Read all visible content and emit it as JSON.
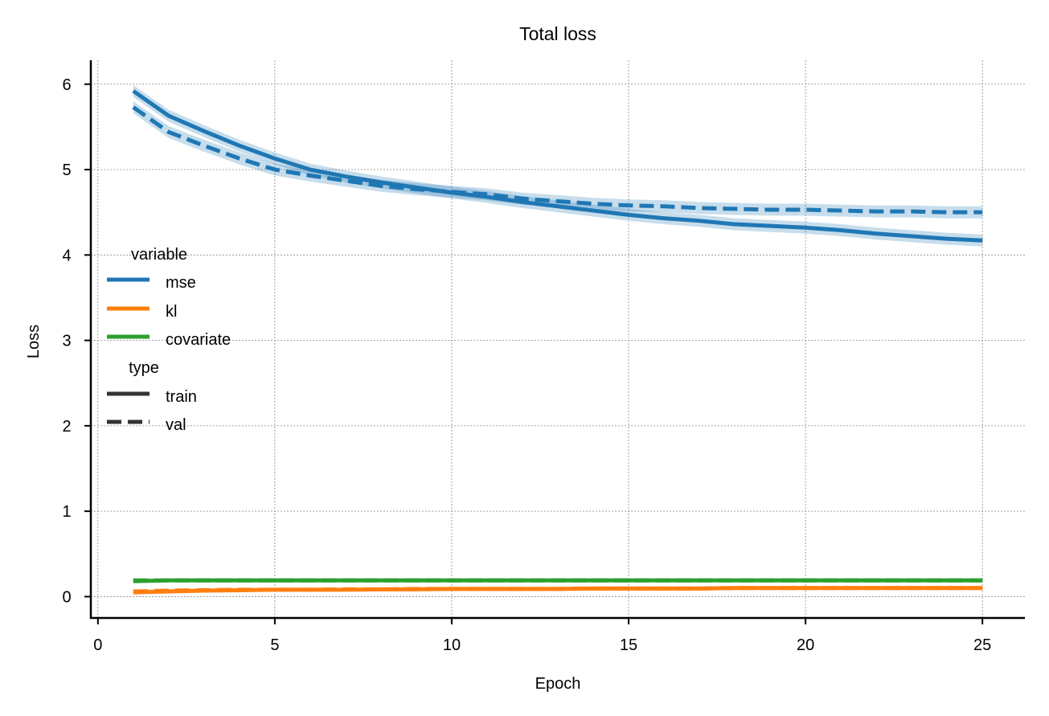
{
  "chart_data": {
    "type": "line",
    "title": "Total loss",
    "xlabel": "Epoch",
    "ylabel": "Loss",
    "xlim": [
      -0.2,
      26.2
    ],
    "ylim": [
      -0.25,
      6.28
    ],
    "xticks": [
      0,
      5,
      10,
      15,
      20,
      25
    ],
    "yticks": [
      0,
      1,
      2,
      3,
      4,
      5,
      6
    ],
    "grid": true,
    "legend_placement": "center-left",
    "legend": {
      "hue_title": "variable",
      "hue_entries": [
        "mse",
        "kl",
        "covariate"
      ],
      "style_title": "type",
      "style_entries": [
        "train",
        "val"
      ]
    },
    "colors": {
      "mse": "#1f77b4",
      "kl": "#ff7f0e",
      "covariate": "#2ca02c",
      "style_key": "#333333"
    },
    "x": [
      1,
      2,
      3,
      4,
      5,
      6,
      7,
      8,
      9,
      10,
      11,
      12,
      13,
      14,
      15,
      16,
      17,
      18,
      19,
      20,
      21,
      22,
      23,
      24,
      25
    ],
    "series": [
      {
        "variable": "mse",
        "type": "train",
        "band": 0.07,
        "values": [
          5.92,
          5.63,
          5.45,
          5.28,
          5.13,
          5.0,
          4.92,
          4.85,
          4.79,
          4.73,
          4.68,
          4.62,
          4.57,
          4.52,
          4.47,
          4.43,
          4.4,
          4.36,
          4.34,
          4.32,
          4.29,
          4.25,
          4.22,
          4.19,
          4.17
        ]
      },
      {
        "variable": "mse",
        "type": "val",
        "band": 0.07,
        "values": [
          5.73,
          5.44,
          5.28,
          5.13,
          5.0,
          4.93,
          4.87,
          4.81,
          4.77,
          4.74,
          4.71,
          4.66,
          4.63,
          4.6,
          4.58,
          4.57,
          4.55,
          4.54,
          4.53,
          4.53,
          4.52,
          4.51,
          4.51,
          4.5,
          4.5
        ]
      },
      {
        "variable": "kl",
        "type": "train",
        "band": 0.02,
        "values": [
          0.05,
          0.06,
          0.07,
          0.075,
          0.08,
          0.08,
          0.08,
          0.085,
          0.085,
          0.09,
          0.09,
          0.09,
          0.09,
          0.095,
          0.095,
          0.095,
          0.095,
          0.1,
          0.1,
          0.1,
          0.1,
          0.1,
          0.1,
          0.1,
          0.1
        ]
      },
      {
        "variable": "kl",
        "type": "val",
        "band": 0.02,
        "values": [
          0.06,
          0.07,
          0.075,
          0.08,
          0.08,
          0.08,
          0.085,
          0.085,
          0.09,
          0.09,
          0.09,
          0.09,
          0.09,
          0.095,
          0.095,
          0.095,
          0.095,
          0.1,
          0.1,
          0.1,
          0.1,
          0.1,
          0.1,
          0.1,
          0.1
        ]
      },
      {
        "variable": "covariate",
        "type": "train",
        "band": 0.02,
        "values": [
          0.18,
          0.19,
          0.19,
          0.19,
          0.19,
          0.19,
          0.19,
          0.19,
          0.19,
          0.19,
          0.19,
          0.19,
          0.19,
          0.19,
          0.19,
          0.19,
          0.19,
          0.19,
          0.19,
          0.19,
          0.19,
          0.19,
          0.19,
          0.19,
          0.19
        ]
      },
      {
        "variable": "covariate",
        "type": "val",
        "band": 0.02,
        "values": [
          0.19,
          0.19,
          0.19,
          0.19,
          0.19,
          0.19,
          0.19,
          0.19,
          0.19,
          0.19,
          0.19,
          0.19,
          0.19,
          0.19,
          0.19,
          0.19,
          0.19,
          0.19,
          0.19,
          0.19,
          0.19,
          0.19,
          0.19,
          0.19,
          0.19
        ]
      }
    ]
  }
}
